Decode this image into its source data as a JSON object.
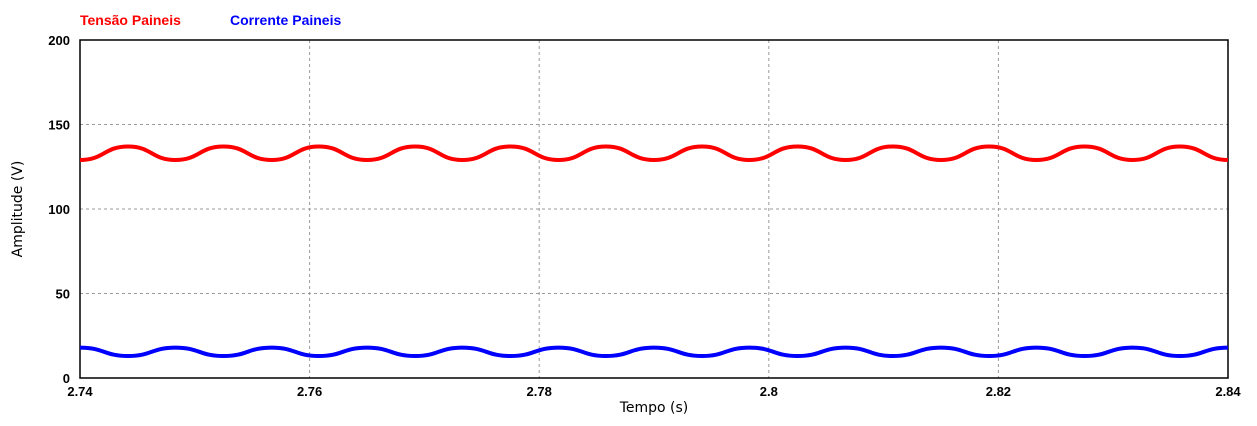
{
  "chart_data": {
    "type": "line",
    "title": "",
    "xlabel": "Tempo (s)",
    "ylabel": "Amplitude (V)",
    "xlim": [
      2.74,
      2.84
    ],
    "ylim": [
      0,
      200
    ],
    "x_ticks": [
      2.74,
      2.76,
      2.78,
      2.8,
      2.82,
      2.84
    ],
    "x_tick_labels": [
      "2.74",
      "2.76",
      "2.78",
      "2.8",
      "2.82",
      "2.84"
    ],
    "y_ticks": [
      0,
      50,
      100,
      150,
      200
    ],
    "y_tick_labels": [
      "0",
      "50",
      "100",
      "150",
      "200"
    ],
    "grid": true,
    "legend_position": "top-left",
    "series": [
      {
        "name": "Tensão Paineis",
        "color": "#ff0000",
        "x": [
          2.74,
          2.7442,
          2.7483,
          2.7525,
          2.7567,
          2.7608,
          2.765,
          2.7692,
          2.7733,
          2.7775,
          2.7817,
          2.7858,
          2.79,
          2.7942,
          2.7983,
          2.8025,
          2.8067,
          2.8108,
          2.815,
          2.8192,
          2.8233,
          2.8275,
          2.8317,
          2.8358,
          2.84
        ],
        "y": [
          129,
          137,
          129,
          137,
          129,
          137,
          129,
          137,
          129,
          137,
          129,
          137,
          129,
          137,
          129,
          137,
          129,
          137,
          129,
          137,
          129,
          137,
          129,
          137,
          129
        ]
      },
      {
        "name": "Corrente Paineis",
        "color": "#0000ff",
        "x": [
          2.74,
          2.7442,
          2.7483,
          2.7525,
          2.7567,
          2.7608,
          2.765,
          2.7692,
          2.7733,
          2.7775,
          2.7817,
          2.7858,
          2.79,
          2.7942,
          2.7983,
          2.8025,
          2.8067,
          2.8108,
          2.815,
          2.8192,
          2.8233,
          2.8275,
          2.8317,
          2.8358,
          2.84
        ],
        "y": [
          18,
          13,
          18,
          13,
          18,
          13,
          18,
          13,
          18,
          13,
          18,
          13,
          18,
          13,
          18,
          13,
          18,
          13,
          18,
          13,
          18,
          13,
          18,
          13,
          18
        ]
      }
    ]
  }
}
